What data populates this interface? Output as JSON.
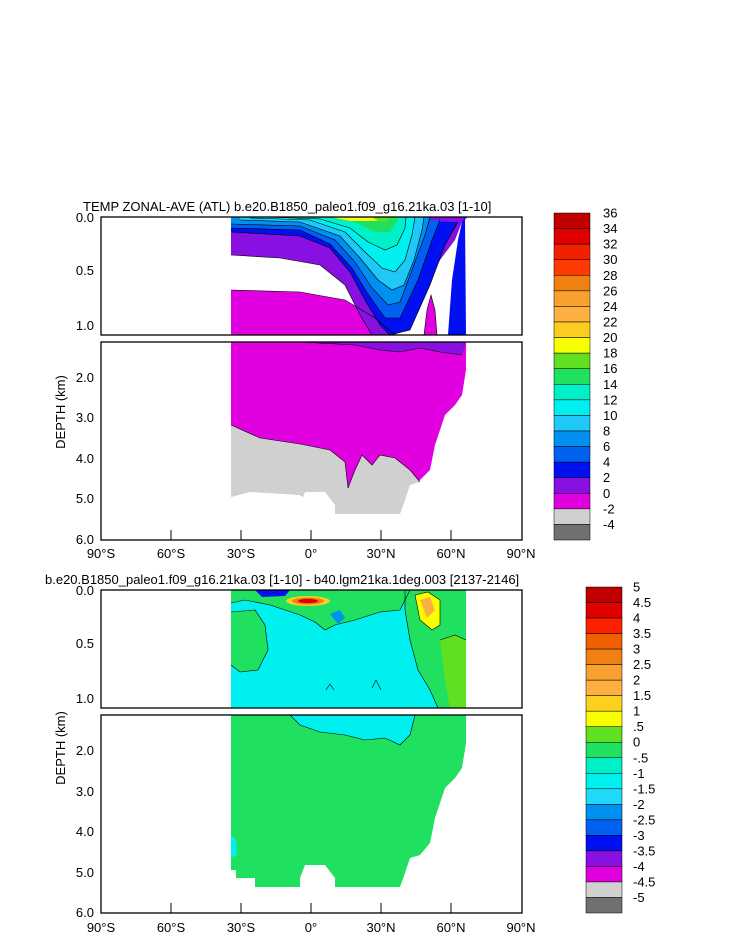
{
  "chart_data": [
    {
      "type": "heatmap",
      "subtype": "filled-contour",
      "title": "TEMP ZONAL-AVE (ATL) b.e20.B1850_paleo1.f09_g16.21ka.03 [1-10]",
      "ylabel": "DEPTH (km)",
      "xlabel": "",
      "xlim": [
        -90,
        90
      ],
      "ylim": [
        0,
        6
      ],
      "x_ticks": [
        "90°S",
        "60°S",
        "30°S",
        "0°",
        "30°N",
        "60°N",
        "90°N"
      ],
      "y_ticks_upper": [
        "0.0",
        "0.5",
        "1.0"
      ],
      "y_ticks_lower": [
        "2.0",
        "3.0",
        "4.0",
        "5.0",
        "6.0"
      ],
      "colorbar": {
        "labels": [
          "36",
          "34",
          "32",
          "30",
          "28",
          "26",
          "24",
          "22",
          "20",
          "18",
          "16",
          "14",
          "12",
          "10",
          "8",
          "6",
          "4",
          "2",
          "0",
          "-2",
          "-4"
        ],
        "colors": [
          "#c00000",
          "#e00000",
          "#f02000",
          "#ff3a00",
          "#f08010",
          "#f8a030",
          "#fdb040",
          "#fdcc20",
          "#f8ff00",
          "#60e020",
          "#20e060",
          "#00f0c8",
          "#00f0f0",
          "#20c8f8",
          "#0090f0",
          "#0060f0",
          "#0010f0",
          "#8810e0",
          "#e000e0",
          "#d0d0d0",
          "#707070"
        ]
      },
      "field": {
        "land_south_of": -33,
        "land_north_of": 66,
        "bottom_depth_km": 5.4,
        "surface_max_deg_c": 22,
        "deep_water_deg_c": "0-2",
        "abyssal_water_deg_c": "-2-0"
      }
    },
    {
      "type": "heatmap",
      "subtype": "filled-contour",
      "title": "b.e20.B1850_paleo1.f09_g16.21ka.03 [1-10] - b40.lgm21ka.1deg.003 [2137-2146]",
      "ylabel": "DEPTH (km)",
      "xlabel": "",
      "xlim": [
        -90,
        90
      ],
      "ylim": [
        0,
        6
      ],
      "x_ticks": [
        "90°S",
        "60°S",
        "30°S",
        "0°",
        "30°N",
        "60°N",
        "90°N"
      ],
      "y_ticks_upper": [
        "0.0",
        "0.5",
        "1.0"
      ],
      "y_ticks_lower": [
        "2.0",
        "3.0",
        "4.0",
        "5.0",
        "6.0"
      ],
      "colorbar": {
        "labels": [
          "5",
          "4.5",
          "4",
          "3.5",
          "3",
          "2.5",
          "2",
          "1.5",
          "1",
          ".5",
          "0",
          "-.5",
          "-1",
          "-1.5",
          "-2",
          "-2.5",
          "-3",
          "-3.5",
          "-4",
          "-4.5",
          "-5"
        ],
        "colors": [
          "#c00000",
          "#e00000",
          "#ff2000",
          "#f06000",
          "#f08010",
          "#f8a030",
          "#fdb040",
          "#fdd020",
          "#f8ff00",
          "#60e020",
          "#20e060",
          "#00f0c8",
          "#00f0f0",
          "#20d8f8",
          "#0090f0",
          "#0060f0",
          "#0010f0",
          "#8810e0",
          "#e000e0",
          "#d0d0d0",
          "#707070"
        ]
      },
      "field": {
        "land_south_of": -33,
        "land_north_of": 66,
        "bottom_depth_km": 5.4,
        "deep_anomaly_deg_c": "0-0.5",
        "mid_depth_anomaly_deg_c": "-0.5-0",
        "surface_anomaly_range_deg_c": [
          -3,
          3
        ]
      }
    }
  ]
}
